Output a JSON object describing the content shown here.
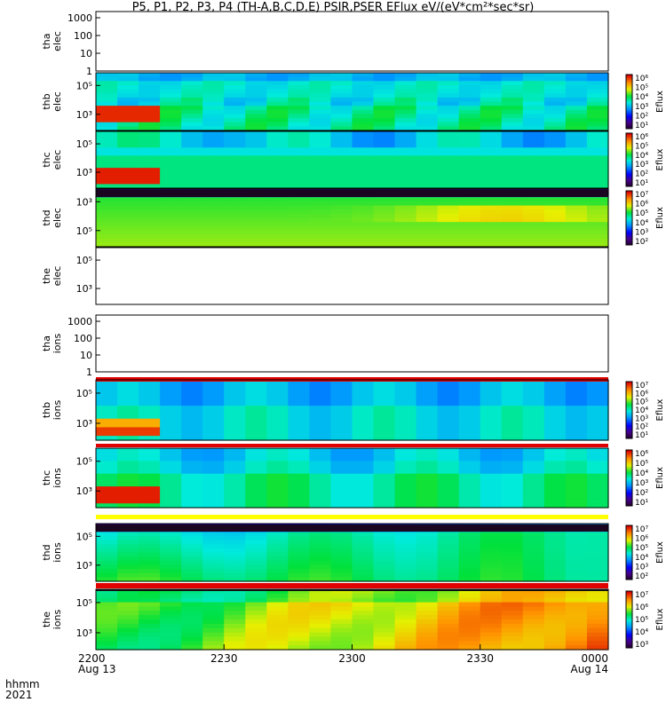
{
  "title": "P5, P1, P2, P3, P4 (TH-A,B,C,D,E) PSIR,PSER EFlux eV/(eV*cm²*sec*sr)",
  "footer": {
    "label_hhmm": "hhmm",
    "label_year": "2021"
  },
  "chart_data": {
    "type": "heatmap",
    "x_ticks": [
      {
        "top": "2200",
        "bottom": "Aug 13"
      },
      {
        "top": "2230",
        "bottom": ""
      },
      {
        "top": "2300",
        "bottom": ""
      },
      {
        "top": "2330",
        "bottom": ""
      },
      {
        "top": "0000",
        "bottom": "Aug 14"
      }
    ],
    "panels": [
      {
        "name": "tha elec",
        "ylabel": [
          "tha",
          "elec"
        ],
        "y_ticks": [
          "1000",
          "100",
          "10",
          "1"
        ],
        "data": "empty",
        "colorbar": null
      },
      {
        "name": "thb elec",
        "ylabel": [
          "thb",
          "elec"
        ],
        "y_ticks": [
          "10⁵",
          "10³"
        ],
        "colorbar": {
          "label": "Eflux",
          "ticks": [
            "10⁶",
            "10⁵",
            "10⁴",
            "10³",
            "10²",
            "10¹"
          ],
          "colormap": "rainbow"
        }
      },
      {
        "name": "thc elec",
        "ylabel": [
          "thc",
          "elec"
        ],
        "y_ticks": [
          "10⁵",
          "10³"
        ],
        "colorbar": {
          "label": "Eflux",
          "ticks": [
            "10⁶",
            "10⁵",
            "10⁴",
            "10³",
            "10²",
            "10¹"
          ],
          "colormap": "rainbow"
        }
      },
      {
        "name": "thd elec",
        "ylabel": [
          "thd",
          "elec"
        ],
        "y_ticks": [
          "10³",
          "10⁵"
        ],
        "colorbar": {
          "label": "Eflux",
          "ticks": [
            "10⁷",
            "10⁶",
            "10⁵",
            "10⁴",
            "10³",
            "10²"
          ],
          "colormap": "rainbow"
        }
      },
      {
        "name": "the elec",
        "ylabel": [
          "the",
          "elec"
        ],
        "y_ticks": [
          "10⁵",
          "10³"
        ],
        "data": "empty",
        "colorbar": null
      },
      {
        "name": "tha ions",
        "ylabel": [
          "tha",
          "ions"
        ],
        "y_ticks": [
          "1000",
          "100",
          "10",
          "1"
        ],
        "data": "empty",
        "colorbar": null
      },
      {
        "name": "thb ions",
        "ylabel": [
          "thb",
          "ions"
        ],
        "y_ticks": [
          "10⁵",
          "10³"
        ],
        "colorbar": {
          "label": "Eflux",
          "ticks": [
            "10⁷",
            "10⁶",
            "10⁵",
            "10⁴",
            "10³",
            "10²",
            "10¹"
          ],
          "colormap": "rainbow"
        }
      },
      {
        "name": "thc ions",
        "ylabel": [
          "thc",
          "ions"
        ],
        "y_ticks": [
          "10⁵",
          "10³"
        ],
        "colorbar": {
          "label": "Eflux",
          "ticks": [
            "10⁶",
            "10⁵",
            "10⁴",
            "10³",
            "10²",
            "10¹"
          ],
          "colormap": "rainbow"
        }
      },
      {
        "name": "thd ions",
        "ylabel": [
          "thd",
          "ions"
        ],
        "y_ticks": [
          "10⁵",
          "10³"
        ],
        "colorbar": {
          "label": "Eflux",
          "ticks": [
            "10⁷",
            "10⁶",
            "10⁵",
            "10⁴",
            "10³",
            "10²"
          ],
          "colormap": "rainbow"
        }
      },
      {
        "name": "the ions",
        "ylabel": [
          "the",
          "ions"
        ],
        "y_ticks": [
          "10⁵",
          "10³"
        ],
        "colorbar": {
          "label": "Eflux",
          "ticks": [
            "10⁷",
            "10⁶",
            "10⁵",
            "10⁴",
            "10³"
          ],
          "colormap": "rainbow"
        }
      }
    ]
  }
}
